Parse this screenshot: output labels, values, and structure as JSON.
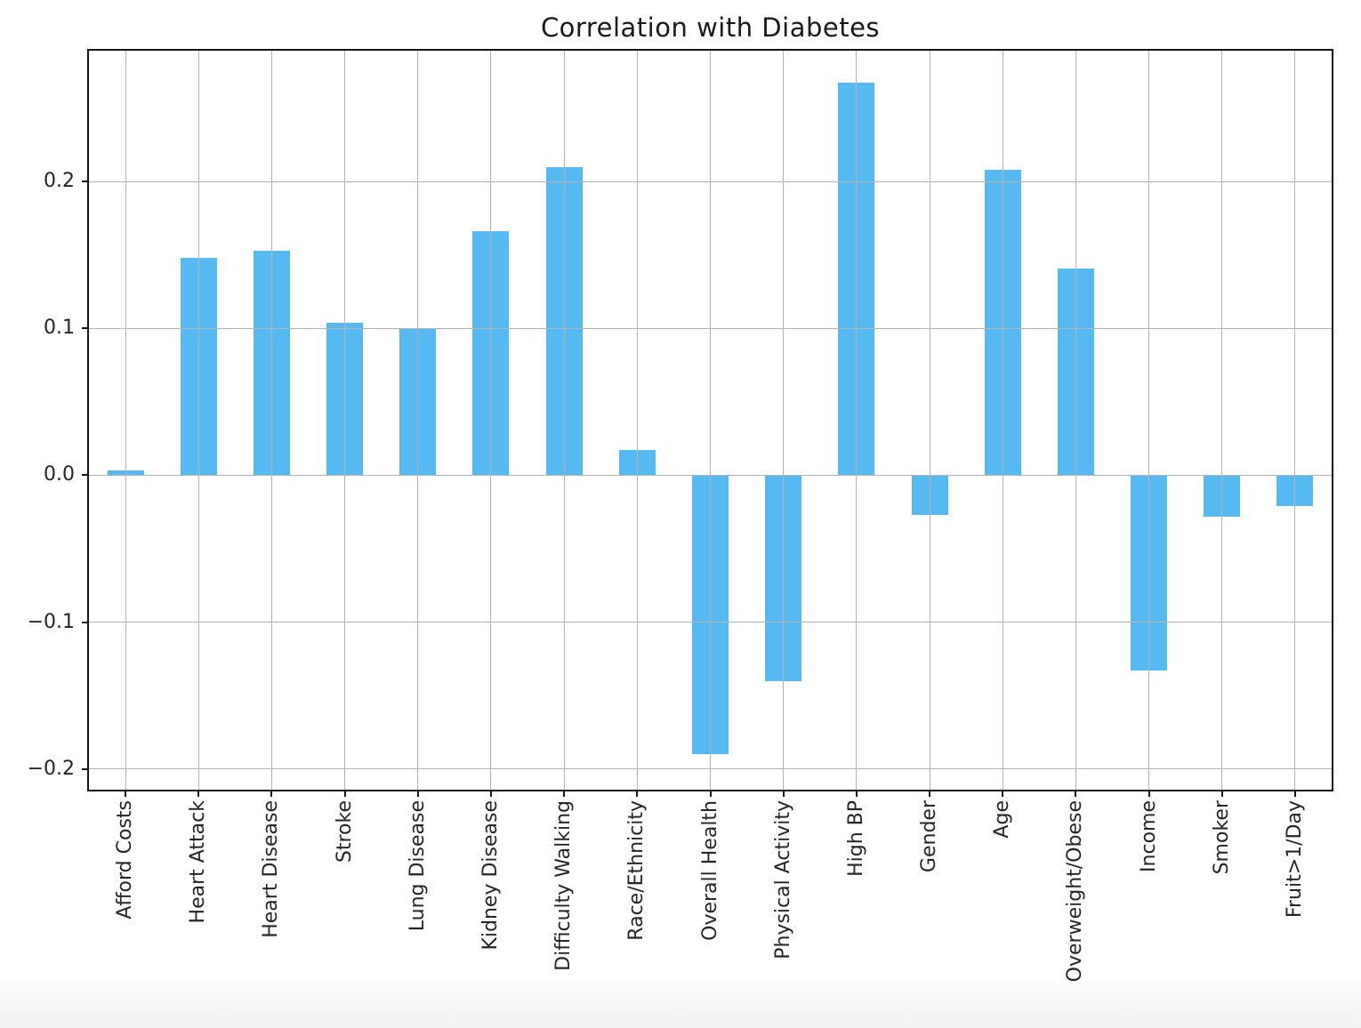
{
  "chart_data": {
    "type": "bar",
    "title": "Correlation with Diabetes",
    "categories": [
      "Afford Costs",
      "Heart Attack",
      "Heart Disease",
      "Stroke",
      "Lung Disease",
      "Kidney Disease",
      "Difficulty Walking",
      "Race/Ethnicity",
      "Overall Health",
      "Physical Activity",
      "High BP",
      "Gender",
      "Age",
      "Overweight/Obese",
      "Income",
      "Smoker",
      "Fruit>1/Day"
    ],
    "values": [
      0.003,
      0.148,
      0.153,
      0.104,
      0.1,
      0.166,
      0.21,
      0.017,
      -0.19,
      -0.14,
      0.267,
      -0.027,
      0.208,
      0.141,
      -0.133,
      -0.028,
      -0.021
    ],
    "xlabel": "",
    "ylabel": "",
    "ylim": [
      -0.214,
      0.289
    ],
    "yticks": [
      -0.2,
      -0.1,
      0.0,
      0.1,
      0.2
    ],
    "ytick_labels": [
      "−0.2",
      "−0.1",
      "0.0",
      "0.1",
      "0.2"
    ],
    "grid": "on",
    "grid_above_bars": true,
    "legend": "none",
    "bar_color": "#56b9f1",
    "grid_color": "#b4b4b4",
    "spine_color": "#161616",
    "text_color": "#262626"
  }
}
